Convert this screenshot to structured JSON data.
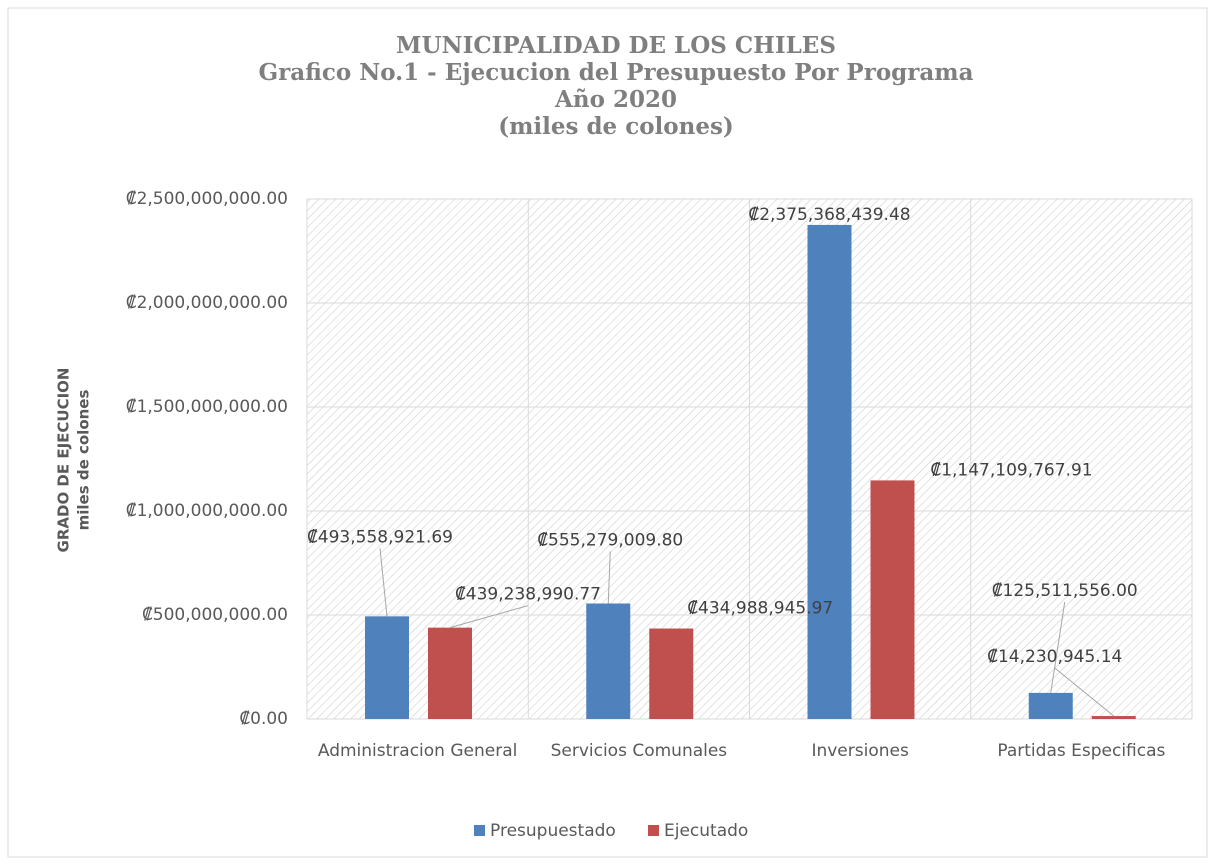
{
  "chart_data": {
    "type": "bar",
    "title": [
      "MUNICIPALIDAD DE LOS CHILES",
      "Grafico No.1 - Ejecucion del Presupuesto Por Programa",
      "Año 2020",
      "(miles de colones)"
    ],
    "y_label": [
      "GRADO DE EJECUCION",
      "miles de colones"
    ],
    "categories": [
      "Administracion General",
      "Servicios Comunales",
      "Inversiones",
      "Partidas Especificas"
    ],
    "series": [
      {
        "name": "Presupuestado",
        "color": "#4f81bd",
        "values": [
          493558921.69,
          555279009.8,
          2375368439.48,
          125511556.0
        ],
        "value_labels": [
          "₡493,558,921.69",
          "₡555,279,009.80",
          "₡2,375,368,439.48",
          "₡125,511,556.00"
        ]
      },
      {
        "name": "Ejecutado",
        "color": "#c0504d",
        "values": [
          439238990.77,
          434988945.97,
          1147109767.91,
          14230945.14
        ],
        "value_labels": [
          "₡439,238,990.77",
          "₡434,988,945.97",
          "₡1,147,109,767.91",
          "₡14,230,945.14"
        ]
      }
    ],
    "ylim": [
      0,
      2500000000
    ],
    "yticks": [
      {
        "value": 0,
        "label": "₡0.00"
      },
      {
        "value": 500000000,
        "label": "₡500,000,000.00"
      },
      {
        "value": 1000000000,
        "label": "₡1,000,000,000.00"
      },
      {
        "value": 1500000000,
        "label": "₡1,500,000,000.00"
      },
      {
        "value": 2000000000,
        "label": "₡2,000,000,000.00"
      },
      {
        "value": 2500000000,
        "label": "₡2,500,000,000.00"
      }
    ],
    "grid": true,
    "legend": "bottom"
  }
}
